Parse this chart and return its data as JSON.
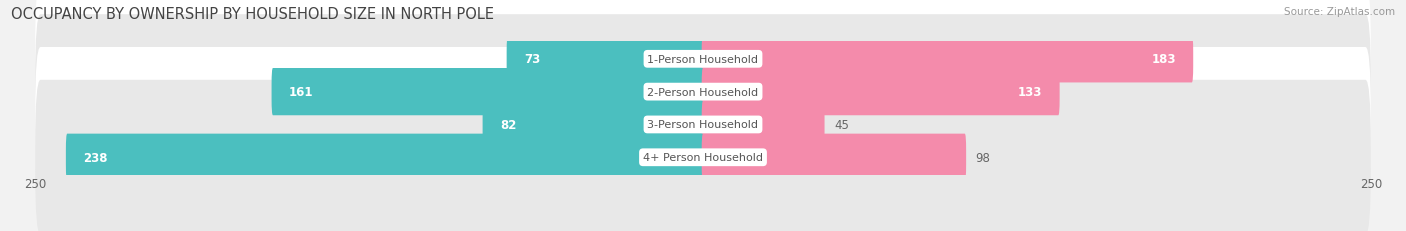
{
  "title": "OCCUPANCY BY OWNERSHIP BY HOUSEHOLD SIZE IN NORTH POLE",
  "source": "Source: ZipAtlas.com",
  "categories": [
    "1-Person Household",
    "2-Person Household",
    "3-Person Household",
    "4+ Person Household"
  ],
  "owner_values": [
    73,
    161,
    82,
    238
  ],
  "renter_values": [
    183,
    133,
    45,
    98
  ],
  "max_val": 250,
  "owner_color": "#4BBFBF",
  "renter_color": "#F48BAB",
  "bg_color": "#f2f2f2",
  "row_even_color": "#ffffff",
  "row_odd_color": "#e8e8e8",
  "title_fontsize": 10.5,
  "source_fontsize": 7.5,
  "bar_label_fontsize": 8.5,
  "cat_label_fontsize": 8,
  "legend_fontsize": 8.5,
  "axis_tick_fontsize": 8.5,
  "owner_label_inside_threshold": 40,
  "renter_label_inside_threshold": 110
}
